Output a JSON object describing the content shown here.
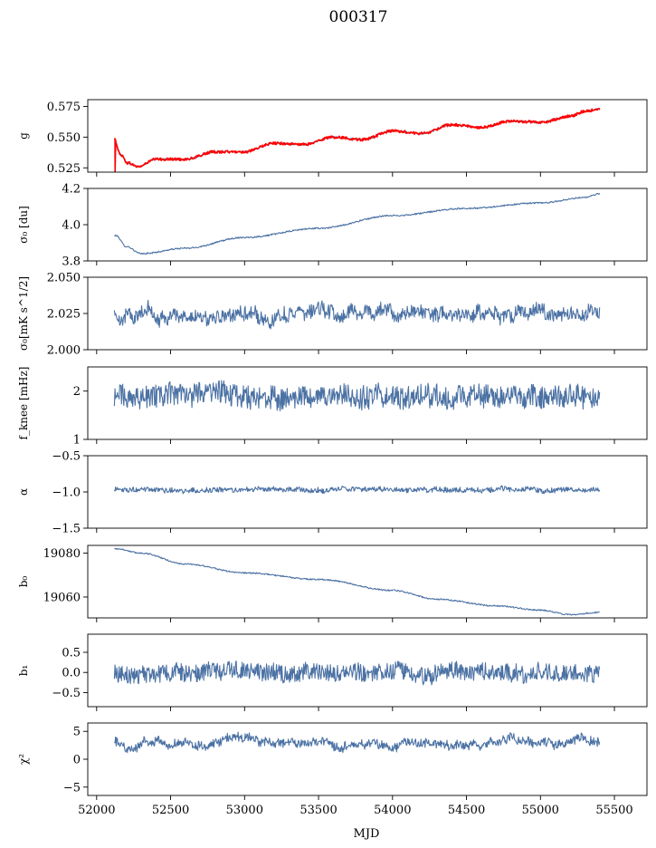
{
  "figure": {
    "title": "000317",
    "xlabel": "MJD"
  },
  "chart_data": [
    {
      "type": "line",
      "ylabel": "g",
      "ylim": [
        0.5215,
        0.5805
      ],
      "yticks": [
        "0.525",
        "0.550",
        "0.575"
      ],
      "series": [
        {
          "color": "#4c72a4",
          "width": 1.2,
          "kind": "trend",
          "knots": [
            [
              52120,
              0.548
            ],
            [
              52160,
              0.536
            ],
            [
              52210,
              0.529
            ],
            [
              52280,
              0.526
            ],
            [
              52400,
              0.532
            ],
            [
              52600,
              0.532
            ],
            [
              52800,
              0.538
            ],
            [
              53000,
              0.538
            ],
            [
              53200,
              0.545
            ],
            [
              53400,
              0.544
            ],
            [
              53600,
              0.55
            ],
            [
              53800,
              0.548
            ],
            [
              54000,
              0.555
            ],
            [
              54200,
              0.553
            ],
            [
              54400,
              0.56
            ],
            [
              54600,
              0.558
            ],
            [
              54800,
              0.563
            ],
            [
              55000,
              0.562
            ],
            [
              55200,
              0.567
            ],
            [
              55300,
              0.571
            ],
            [
              55400,
              0.573
            ]
          ],
          "noise": 0.0006,
          "bumps": 0
        },
        {
          "color": "#ff0000",
          "width": 1.6,
          "kind": "trend",
          "knots": [
            [
              52120,
              0.548
            ],
            [
              52160,
              0.536
            ],
            [
              52210,
              0.529
            ],
            [
              52280,
              0.526
            ],
            [
              52400,
              0.532
            ],
            [
              52600,
              0.532
            ],
            [
              52800,
              0.538
            ],
            [
              53000,
              0.538
            ],
            [
              53200,
              0.545
            ],
            [
              53400,
              0.544
            ],
            [
              53600,
              0.55
            ],
            [
              53800,
              0.548
            ],
            [
              54000,
              0.555
            ],
            [
              54200,
              0.553
            ],
            [
              54400,
              0.56
            ],
            [
              54600,
              0.558
            ],
            [
              54800,
              0.563
            ],
            [
              55000,
              0.562
            ],
            [
              55200,
              0.567
            ],
            [
              55300,
              0.571
            ],
            [
              55400,
              0.573
            ]
          ],
          "noise": 0.0011,
          "bumps": 1,
          "glitch": [
            52125,
            0.522
          ]
        }
      ]
    },
    {
      "type": "line",
      "ylabel": "σ₀ [du]",
      "ylim": [
        3.8,
        4.2
      ],
      "yticks": [
        "3.8",
        "4.0",
        "4.2"
      ],
      "series": [
        {
          "color": "#4c72a4",
          "width": 1.1,
          "kind": "trend",
          "knots": [
            [
              52130,
              3.94
            ],
            [
              52200,
              3.88
            ],
            [
              52300,
              3.84
            ],
            [
              52600,
              3.87
            ],
            [
              53000,
              3.93
            ],
            [
              53500,
              3.98
            ],
            [
              54000,
              4.05
            ],
            [
              54500,
              4.09
            ],
            [
              55000,
              4.12
            ],
            [
              55300,
              4.15
            ],
            [
              55400,
              4.17
            ]
          ],
          "noise": 0.004,
          "bumps": 0
        }
      ]
    },
    {
      "type": "line",
      "ylabel": "σ₀[mK s^1/2]",
      "ylim": [
        2.0,
        2.05
      ],
      "yticks": [
        "2.000",
        "2.025",
        "2.050"
      ],
      "series": [
        {
          "color": "#4c72a4",
          "width": 1.1,
          "kind": "noise",
          "mean": 2.025,
          "amp": 0.0045,
          "slow": 0.003,
          "step": 4
        }
      ]
    },
    {
      "type": "line",
      "ylabel": "f_knee [mHz]",
      "ylim": [
        1.0,
        2.5
      ],
      "yticks": [
        "1",
        "2"
      ],
      "series": [
        {
          "color": "#4c72a4",
          "width": 1.1,
          "kind": "noise",
          "mean": 1.9,
          "amp": 0.24,
          "slow": 0.05,
          "step": 4
        }
      ]
    },
    {
      "type": "line",
      "ylabel": "α",
      "ylim": [
        -1.5,
        -0.5
      ],
      "yticks": [
        "−1.5",
        "−1.0",
        "−0.5"
      ],
      "series": [
        {
          "color": "#4c72a4",
          "width": 1.1,
          "kind": "noise",
          "mean": -0.97,
          "amp": 0.035,
          "slow": 0.01,
          "step": 4
        }
      ]
    },
    {
      "type": "line",
      "ylabel": "b₀",
      "ylim": [
        19050.5,
        19083.5
      ],
      "yticks": [
        "19060",
        "19080"
      ],
      "series": [
        {
          "color": "#4c72a4",
          "width": 1.1,
          "kind": "trend",
          "knots": [
            [
              52130,
              19082
            ],
            [
              52300,
              19080
            ],
            [
              52600,
              19075
            ],
            [
              53000,
              19071
            ],
            [
              53500,
              19068
            ],
            [
              54000,
              19063
            ],
            [
              54300,
              19059
            ],
            [
              54700,
              19056
            ],
            [
              55000,
              19054
            ],
            [
              55200,
              19052
            ],
            [
              55400,
              19053
            ]
          ],
          "noise": 0.3,
          "bumps": 0
        }
      ]
    },
    {
      "type": "line",
      "ylabel": "b₁",
      "ylim": [
        -0.85,
        0.95
      ],
      "yticks": [
        "−0.5",
        "0.0",
        "0.5"
      ],
      "series": [
        {
          "color": "#4c72a4",
          "width": 1.1,
          "kind": "noise",
          "mean": 0.0,
          "amp": 0.22,
          "slow": 0.04,
          "step": 4
        }
      ]
    },
    {
      "type": "line",
      "ylabel": "χ²",
      "ylim": [
        -6.5,
        6.5
      ],
      "yticks": [
        "−5",
        "0",
        "5"
      ],
      "series": [
        {
          "color": "#4c72a4",
          "width": 1.1,
          "kind": "noise",
          "mean": 3.0,
          "amp": 0.75,
          "slow": 0.5,
          "step": 4
        }
      ]
    }
  ],
  "xaxis": {
    "xlim": [
      51940,
      55720
    ],
    "xstart": 52120,
    "xend": 55400,
    "ticks": [
      "52000",
      "52500",
      "53000",
      "53500",
      "54000",
      "54500",
      "55000",
      "55500"
    ]
  }
}
